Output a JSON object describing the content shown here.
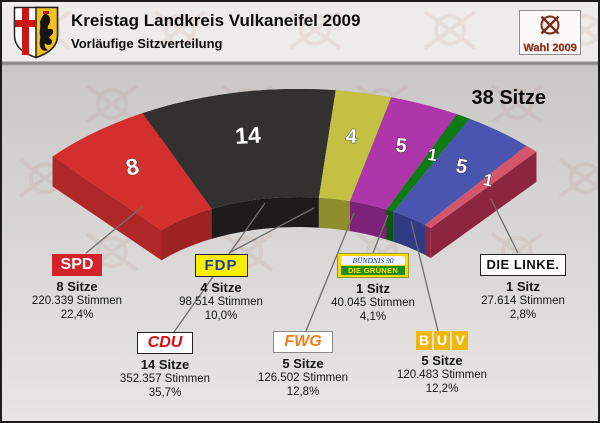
{
  "header": {
    "title": "Kreistag Landkreis Vulkaneifel 2009",
    "subtitle": "Vorläufige Sitzverteilung",
    "badge_label": "Wahl 2009"
  },
  "chart_data": {
    "type": "pie",
    "shape": "3d-arc-seat-distribution",
    "title": "Kreistag Landkreis Vulkaneifel 2009",
    "subtitle": "Vorläufige Sitzverteilung",
    "total_seats": 38,
    "total_label": "38 Sitze",
    "legend_position": "bottom",
    "parties": [
      {
        "id": "spd",
        "name": "SPD",
        "seats": 8,
        "seat_number": "8",
        "seats_label": "8 Sitze",
        "votes": 220339,
        "votes_label": "220.339 Stimmen",
        "percent": 22.4,
        "percent_label": "22,4%",
        "color": "#d42f2f",
        "side_color": "#9e2222",
        "cap_color": "#b02727"
      },
      {
        "id": "cdu",
        "name": "CDU",
        "seats": 14,
        "seat_number": "14",
        "seats_label": "14 Sitze",
        "votes": 352357,
        "votes_label": "352.357 Stimmen",
        "percent": 35.7,
        "percent_label": "35,7%",
        "color": "#333030",
        "side_color": "#1d1b1b"
      },
      {
        "id": "fdp",
        "name": "FDP",
        "seats": 4,
        "seat_number": "4",
        "seats_label": "4 Sitze",
        "votes": 98514,
        "votes_label": "98.514 Stimmen",
        "percent": 10.0,
        "percent_label": "10,0%",
        "color": "#c3c044",
        "side_color": "#8f8d2c"
      },
      {
        "id": "fwg",
        "name": "FWG",
        "seats": 5,
        "seat_number": "5",
        "seats_label": "5 Sitze",
        "votes": 126502,
        "votes_label": "126.502 Stimmen",
        "percent": 12.8,
        "percent_label": "12,8%",
        "color": "#af35ab",
        "side_color": "#7d2279"
      },
      {
        "id": "gruene",
        "name": "BÜNDNIS 90 / DIE GRÜNEN",
        "logo_top": "BÜNDNIS 90",
        "logo_bottom": "DIE GRÜNEN",
        "seats": 1,
        "seat_number": "1",
        "seats_label": "1 Sitz",
        "votes": 40045,
        "votes_label": "40.045 Stimmen",
        "percent": 4.1,
        "percent_label": "4,1%",
        "color": "#0e7c13",
        "side_color": "#08570d"
      },
      {
        "id": "buv",
        "name": "BUV",
        "seats": 5,
        "seat_number": "5",
        "seats_label": "5 Sitze",
        "votes": 120483,
        "votes_label": "120.483 Stimmen",
        "percent": 12.2,
        "percent_label": "12,2%",
        "color": "#4a55af",
        "side_color": "#303b84"
      },
      {
        "id": "linke",
        "name": "DIE LINKE.",
        "seats": 1,
        "seat_number": "1",
        "seats_label": "1 Sitz",
        "votes": 27614,
        "votes_label": "27.614 Stimmen",
        "percent": 2.8,
        "percent_label": "2,8%",
        "color": "#d4566c",
        "side_color": "#8d2541",
        "cap_color": "#8d2541"
      }
    ]
  }
}
